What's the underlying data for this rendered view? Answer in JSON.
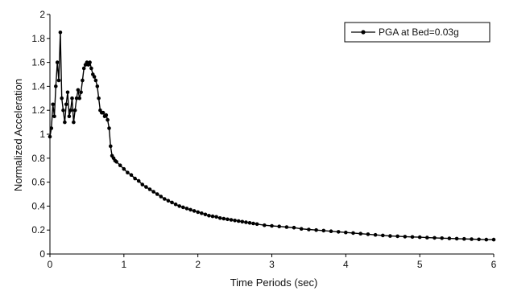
{
  "chart_data": {
    "type": "line",
    "title": "",
    "xlabel": "Time Periods (sec)",
    "ylabel": "Normalized Acceleration",
    "xlim": [
      0,
      6
    ],
    "ylim": [
      0,
      2
    ],
    "xticks": [
      {
        "value": 0,
        "label": "0"
      },
      {
        "value": 1,
        "label": "1"
      },
      {
        "value": 2,
        "label": "2"
      },
      {
        "value": 3,
        "label": "3"
      },
      {
        "value": 4,
        "label": "4"
      },
      {
        "value": 5,
        "label": "5"
      },
      {
        "value": 6,
        "label": "6"
      }
    ],
    "yticks": [
      {
        "value": 0,
        "label": "0"
      },
      {
        "value": 0.2,
        "label": "0.2"
      },
      {
        "value": 0.4,
        "label": "0.4"
      },
      {
        "value": 0.6,
        "label": "0.6"
      },
      {
        "value": 0.8,
        "label": "0.8"
      },
      {
        "value": 1,
        "label": "1"
      },
      {
        "value": 1.2,
        "label": "1.2"
      },
      {
        "value": 1.4,
        "label": "1.4"
      },
      {
        "value": 1.6,
        "label": "1.6"
      },
      {
        "value": 1.8,
        "label": "1.8"
      },
      {
        "value": 2,
        "label": "2"
      }
    ],
    "grid": false,
    "legend": {
      "placement": "top-right"
    },
    "colors": {
      "series": "#000000",
      "axis": "#000000"
    },
    "series": [
      {
        "name": "PGA at Bed=0.03g",
        "marker": "circle",
        "x": [
          0.0,
          0.02,
          0.04,
          0.06,
          0.08,
          0.1,
          0.12,
          0.14,
          0.16,
          0.18,
          0.2,
          0.22,
          0.24,
          0.26,
          0.28,
          0.3,
          0.32,
          0.34,
          0.36,
          0.38,
          0.4,
          0.42,
          0.44,
          0.46,
          0.48,
          0.5,
          0.52,
          0.54,
          0.56,
          0.58,
          0.6,
          0.62,
          0.64,
          0.66,
          0.68,
          0.7,
          0.72,
          0.74,
          0.76,
          0.78,
          0.8,
          0.82,
          0.84,
          0.86,
          0.88,
          0.9,
          0.95,
          1.0,
          1.05,
          1.1,
          1.15,
          1.2,
          1.25,
          1.3,
          1.35,
          1.4,
          1.45,
          1.5,
          1.55,
          1.6,
          1.65,
          1.7,
          1.75,
          1.8,
          1.85,
          1.9,
          1.95,
          2.0,
          2.05,
          2.1,
          2.15,
          2.2,
          2.25,
          2.3,
          2.35,
          2.4,
          2.45,
          2.5,
          2.55,
          2.6,
          2.65,
          2.7,
          2.75,
          2.8,
          2.9,
          3.0,
          3.1,
          3.2,
          3.3,
          3.4,
          3.5,
          3.6,
          3.7,
          3.8,
          3.9,
          4.0,
          4.1,
          4.2,
          4.3,
          4.4,
          4.5,
          4.6,
          4.7,
          4.8,
          4.9,
          5.0,
          5.1,
          5.2,
          5.3,
          5.4,
          5.5,
          5.6,
          5.7,
          5.8,
          5.9,
          6.0
        ],
        "y": [
          0.98,
          1.05,
          1.25,
          1.15,
          1.4,
          1.6,
          1.45,
          1.85,
          1.3,
          1.2,
          1.1,
          1.25,
          1.35,
          1.15,
          1.2,
          1.3,
          1.1,
          1.2,
          1.3,
          1.37,
          1.3,
          1.35,
          1.45,
          1.55,
          1.58,
          1.6,
          1.58,
          1.6,
          1.55,
          1.5,
          1.48,
          1.45,
          1.4,
          1.3,
          1.2,
          1.18,
          1.18,
          1.15,
          1.16,
          1.12,
          1.05,
          0.9,
          0.82,
          0.8,
          0.78,
          0.77,
          0.74,
          0.71,
          0.68,
          0.66,
          0.63,
          0.61,
          0.58,
          0.56,
          0.54,
          0.52,
          0.5,
          0.48,
          0.46,
          0.445,
          0.43,
          0.415,
          0.4,
          0.39,
          0.38,
          0.37,
          0.36,
          0.35,
          0.34,
          0.33,
          0.32,
          0.315,
          0.31,
          0.3,
          0.295,
          0.29,
          0.285,
          0.28,
          0.275,
          0.27,
          0.265,
          0.26,
          0.255,
          0.25,
          0.24,
          0.235,
          0.23,
          0.225,
          0.22,
          0.21,
          0.205,
          0.2,
          0.195,
          0.19,
          0.185,
          0.18,
          0.175,
          0.17,
          0.165,
          0.16,
          0.155,
          0.15,
          0.148,
          0.145,
          0.142,
          0.14,
          0.137,
          0.135,
          0.132,
          0.13,
          0.128,
          0.126,
          0.124,
          0.122,
          0.12,
          0.12
        ]
      }
    ]
  }
}
